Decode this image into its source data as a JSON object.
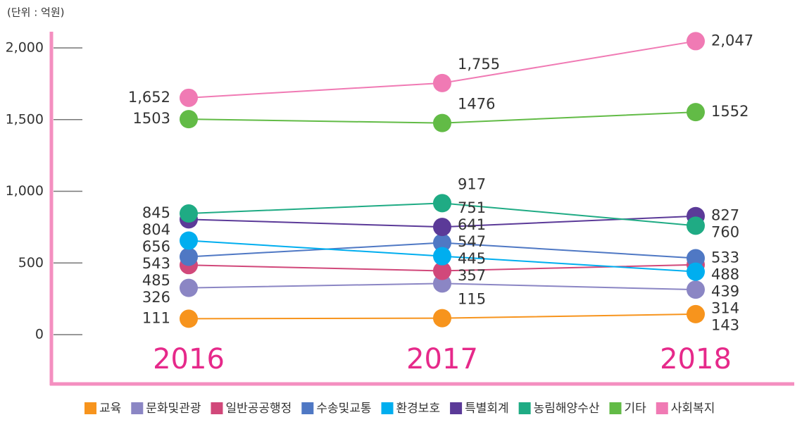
{
  "chart_data": {
    "type": "line",
    "unit_note": "(단위 : 억원)",
    "categories": [
      "2016",
      "2017",
      "2018"
    ],
    "ylim": [
      0,
      2000
    ],
    "yticks": [
      0,
      500,
      {
        "value": 1000,
        "label": "1,000"
      },
      {
        "value": 1500,
        "label": "1,500"
      },
      {
        "value": 2000,
        "label": "2,000"
      }
    ],
    "series": [
      {
        "name": "교육",
        "color": "#f7941d",
        "values": [
          111,
          115,
          143
        ]
      },
      {
        "name": "문화및관광",
        "color": "#8b86c4",
        "values": [
          326,
          357,
          314
        ]
      },
      {
        "name": "일반공공행정",
        "color": "#d1487a",
        "values": [
          485,
          445,
          488
        ]
      },
      {
        "name": "수송및교통",
        "color": "#4f78c4",
        "values": [
          543,
          641,
          533
        ]
      },
      {
        "name": "환경보호",
        "color": "#00aeef",
        "values": [
          656,
          547,
          439
        ]
      },
      {
        "name": "특별회계",
        "color": "#5b3a98",
        "values": [
          804,
          751,
          827
        ]
      },
      {
        "name": "농림해양수산",
        "color": "#1fab84",
        "values": [
          845,
          917,
          760
        ]
      },
      {
        "name": "기타",
        "color": "#62bb46",
        "values": [
          1503,
          1476,
          1552
        ]
      },
      {
        "name": "사회복지",
        "color": "#f07ab4",
        "values": [
          1652,
          1755,
          2047
        ],
        "value_labels": [
          "1,652",
          "1,755",
          "2,047"
        ]
      }
    ]
  }
}
